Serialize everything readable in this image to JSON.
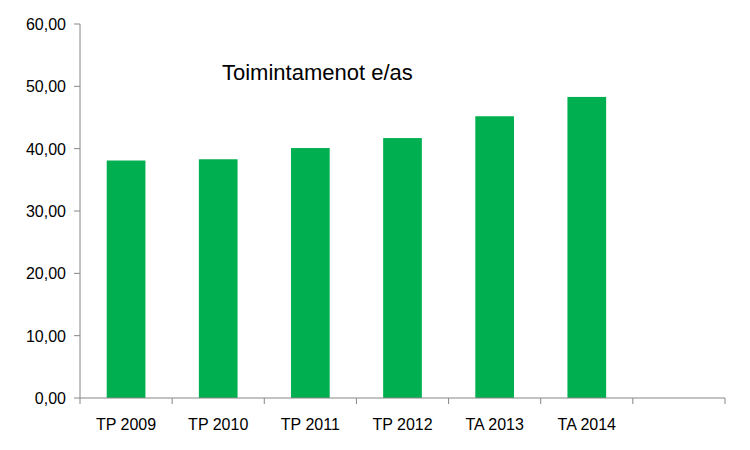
{
  "chart_data": {
    "type": "bar",
    "title": "Toimintamenot e/as",
    "categories": [
      "TP 2009",
      "TP 2010",
      "TP 2011",
      "TP 2012",
      "TA 2013",
      "TA 2014",
      null
    ],
    "values": [
      38.1,
      38.3,
      40.1,
      41.7,
      45.2,
      48.3,
      null
    ],
    "color": "#00b050",
    "ylim": [
      0,
      60
    ],
    "yticks": [
      {
        "value": 0,
        "label": "0,00"
      },
      {
        "value": 10,
        "label": "10,00"
      },
      {
        "value": 20,
        "label": "20,00"
      },
      {
        "value": 30,
        "label": "30,00"
      },
      {
        "value": 40,
        "label": "40,00"
      },
      {
        "value": 50,
        "label": "50,00"
      },
      {
        "value": 60,
        "label": "60,00"
      }
    ],
    "grid": false
  }
}
